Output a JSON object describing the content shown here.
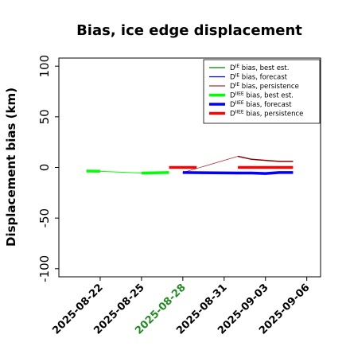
{
  "chart_data": {
    "type": "line",
    "title": "Bias, ice edge displacement",
    "xlabel": "",
    "ylabel": "Displacement bias (km)",
    "xlim": [
      "2025-08-19",
      "2025-09-07"
    ],
    "ylim": [
      -108,
      108
    ],
    "yticks": [
      -100,
      -50,
      0,
      50,
      100
    ],
    "xticks": [
      "2025-08-22",
      "2025-08-25",
      "2025-08-28",
      "2025-08-31",
      "2025-09-03",
      "2025-09-06"
    ],
    "highlight_tick": "2025-08-28",
    "highlight_color": "#228b22",
    "grid": false,
    "legend_position": "upper-right",
    "legend": [
      {
        "pre": "D",
        "sup": "IE",
        "post": " bias, best est.",
        "color": "#008000",
        "width": 1.3
      },
      {
        "pre": "D",
        "sup": "IE",
        "post": " bias, forecast",
        "color": "#0000c8",
        "width": 1.3
      },
      {
        "pre": "D",
        "sup": "IE",
        "post": " bias, persistence",
        "color": "#8b0000",
        "width": 1.0
      },
      {
        "pre": "D",
        "sup": "IIEE",
        "post": " bias, best est.",
        "color": "#00ff00",
        "width": 3.5
      },
      {
        "pre": "D",
        "sup": "IIEE",
        "post": " bias, forecast",
        "color": "#0000ff",
        "width": 3.5
      },
      {
        "pre": "D",
        "sup": "IIEE",
        "post": " bias, persistence",
        "color": "#ff0000",
        "width": 3.5
      }
    ],
    "series": [
      {
        "key": "ie_best",
        "color": "#00ff00",
        "width": 1.0,
        "x": [
          "2025-08-21",
          "2025-08-22",
          "2025-08-25",
          "2025-08-27"
        ],
        "y": [
          -3.5,
          -3.8,
          -5.5,
          -5
        ]
      },
      {
        "key": "ie_persist",
        "color": "#b03030",
        "width": 0.8,
        "x": [
          "2025-08-28",
          "2025-09-01",
          "2025-09-02",
          "2025-09-03",
          "2025-09-04",
          "2025-09-05"
        ],
        "y": [
          -5,
          11,
          8,
          7,
          6,
          6
        ]
      },
      {
        "key": "ie_fcst",
        "color": "#0000c8",
        "width": 1.3,
        "x": [
          "2025-08-28",
          "2025-09-01",
          "2025-09-02",
          "2025-09-03",
          "2025-09-04",
          "2025-09-05"
        ],
        "y": [
          -5,
          -5.5,
          -5.5,
          -6,
          -5,
          -5
        ]
      },
      {
        "key": "ie_persist_dark",
        "color": "#8b0000",
        "width": 1.5,
        "x": [
          "2025-09-01",
          "2025-09-02",
          "2025-09-03",
          "2025-09-04",
          "2025-09-05"
        ],
        "y": [
          11,
          8,
          7,
          6,
          6
        ]
      },
      {
        "key": "iiee_best_a",
        "color": "#00ff00",
        "width": 3.5,
        "x": [
          "2025-08-21",
          "2025-08-22"
        ],
        "y": [
          -3.5,
          -3.8
        ]
      },
      {
        "key": "iiee_best_b",
        "color": "#00ff00",
        "width": 3.5,
        "x": [
          "2025-08-25",
          "2025-08-27"
        ],
        "y": [
          -5.5,
          -5
        ]
      },
      {
        "key": "iiee_fcst",
        "color": "#0000ff",
        "width": 3.5,
        "x": [
          "2025-08-28",
          "2025-09-01",
          "2025-09-02",
          "2025-09-03",
          "2025-09-04",
          "2025-09-05"
        ],
        "y": [
          -5,
          -5.5,
          -5.5,
          -6,
          -5,
          -5
        ]
      },
      {
        "key": "iiee_persist_a",
        "color": "#ff0000",
        "width": 3.5,
        "x": [
          "2025-08-27",
          "2025-08-29"
        ],
        "y": [
          0,
          0
        ]
      },
      {
        "key": "iiee_persist_b",
        "color": "#ff0000",
        "width": 3.5,
        "x": [
          "2025-09-01",
          "2025-09-05"
        ],
        "y": [
          0,
          0
        ]
      }
    ]
  }
}
